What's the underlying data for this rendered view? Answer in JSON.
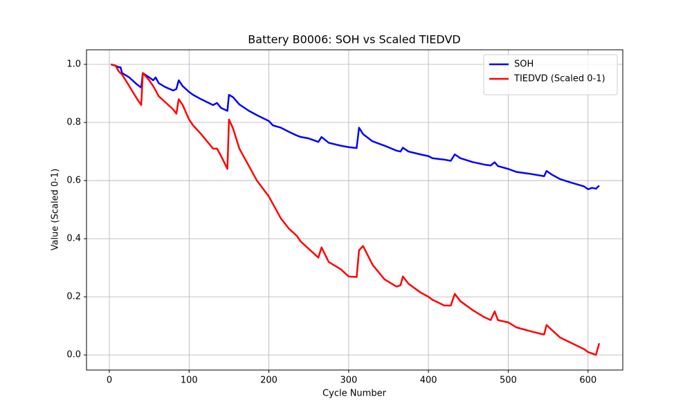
{
  "chart_data": {
    "type": "line",
    "title": "Battery B0006: SOH vs Scaled TIEDVD",
    "x_label": "Cycle Number",
    "y_label": "Value (Scaled 0-1)",
    "x": [
      2,
      8,
      12,
      14,
      16,
      25,
      35,
      40,
      42,
      50,
      55,
      58,
      62,
      70,
      80,
      84,
      87,
      92,
      100,
      105,
      115,
      130,
      135,
      140,
      148,
      150,
      155,
      163,
      175,
      185,
      200,
      205,
      215,
      225,
      235,
      240,
      250,
      262,
      266,
      275,
      290,
      300,
      310,
      313,
      318,
      330,
      345,
      360,
      365,
      368,
      375,
      390,
      400,
      405,
      420,
      428,
      433,
      440,
      455,
      470,
      478,
      483,
      487,
      500,
      510,
      530,
      545,
      548,
      555,
      565,
      580,
      595,
      600,
      605,
      610,
      614
    ],
    "series": [
      {
        "name": "SOH",
        "color": "#0000ff",
        "values": [
          1.0,
          0.995,
          0.99,
          0.99,
          0.97,
          0.955,
          0.93,
          0.92,
          0.97,
          0.955,
          0.945,
          0.955,
          0.935,
          0.922,
          0.91,
          0.915,
          0.945,
          0.925,
          0.905,
          0.895,
          0.88,
          0.86,
          0.867,
          0.85,
          0.84,
          0.895,
          0.887,
          0.862,
          0.84,
          0.825,
          0.805,
          0.79,
          0.782,
          0.768,
          0.755,
          0.75,
          0.745,
          0.733,
          0.75,
          0.73,
          0.72,
          0.715,
          0.712,
          0.782,
          0.76,
          0.735,
          0.72,
          0.703,
          0.7,
          0.713,
          0.7,
          0.69,
          0.684,
          0.677,
          0.672,
          0.668,
          0.69,
          0.677,
          0.664,
          0.655,
          0.652,
          0.663,
          0.65,
          0.64,
          0.63,
          0.622,
          0.615,
          0.633,
          0.62,
          0.605,
          0.592,
          0.58,
          0.57,
          0.575,
          0.572,
          0.583
        ]
      },
      {
        "name": "TIEDVD (Scaled 0-1)",
        "color": "#ff0000",
        "values": [
          1.0,
          0.995,
          0.975,
          0.97,
          0.965,
          0.925,
          0.88,
          0.86,
          0.97,
          0.945,
          0.925,
          0.91,
          0.89,
          0.87,
          0.845,
          0.83,
          0.88,
          0.86,
          0.81,
          0.79,
          0.76,
          0.71,
          0.71,
          0.685,
          0.64,
          0.81,
          0.78,
          0.71,
          0.65,
          0.6,
          0.545,
          0.52,
          0.47,
          0.435,
          0.41,
          0.39,
          0.365,
          0.335,
          0.37,
          0.32,
          0.295,
          0.27,
          0.268,
          0.36,
          0.375,
          0.31,
          0.26,
          0.235,
          0.24,
          0.27,
          0.245,
          0.215,
          0.2,
          0.19,
          0.17,
          0.17,
          0.21,
          0.185,
          0.155,
          0.13,
          0.12,
          0.15,
          0.12,
          0.112,
          0.095,
          0.08,
          0.07,
          0.103,
          0.085,
          0.06,
          0.04,
          0.02,
          0.01,
          0.005,
          0.0,
          0.04
        ]
      }
    ],
    "xlim": [
      -28.6,
      643.6
    ],
    "ylim": [
      -0.052,
      1.05
    ],
    "xticks": [
      0,
      100,
      200,
      300,
      400,
      500,
      600
    ],
    "yticks": [
      {
        "value": 0,
        "label": "0.0"
      },
      0.2,
      0.4,
      0.6,
      0.8,
      {
        "value": 1,
        "label": "1.0"
      }
    ],
    "grid": true,
    "legend": "upper right"
  }
}
